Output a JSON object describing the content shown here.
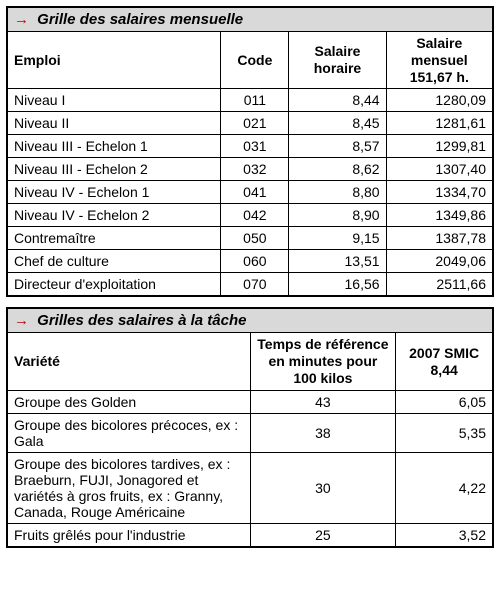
{
  "table1": {
    "title": "Grille des salaires mensuelle",
    "columns": [
      "Emploi",
      "Code",
      "Salaire horaire",
      "Salaire mensuel 151,67 h."
    ],
    "rows": [
      {
        "emploi": "Niveau I",
        "code": "011",
        "horaire": "8,44",
        "mensuel": "1280,09"
      },
      {
        "emploi": "Niveau II",
        "code": "021",
        "horaire": "8,45",
        "mensuel": "1281,61"
      },
      {
        "emploi": "Niveau III - Echelon 1",
        "code": "031",
        "horaire": "8,57",
        "mensuel": "1299,81"
      },
      {
        "emploi": "Niveau III - Echelon 2",
        "code": "032",
        "horaire": "8,62",
        "mensuel": "1307,40"
      },
      {
        "emploi": "Niveau IV - Echelon 1",
        "code": "041",
        "horaire": "8,80",
        "mensuel": "1334,70"
      },
      {
        "emploi": "Niveau IV - Echelon 2",
        "code": "042",
        "horaire": "8,90",
        "mensuel": "1349,86"
      },
      {
        "emploi": "Contremaître",
        "code": "050",
        "horaire": "9,15",
        "mensuel": "1387,78"
      },
      {
        "emploi": "Chef de culture",
        "code": "060",
        "horaire": "13,51",
        "mensuel": "2049,06"
      },
      {
        "emploi": "Directeur d'exploitation",
        "code": "070",
        "horaire": "16,56",
        "mensuel": "2511,66"
      }
    ]
  },
  "table2": {
    "title": "Grilles des salaires à la tâche",
    "columns": [
      "Variété",
      "Temps de référence en minutes pour 100 kilos",
      "2007 SMIC 8,44"
    ],
    "rows": [
      {
        "variete": "Groupe des Golden",
        "temps": "43",
        "smic": "6,05"
      },
      {
        "variete": "Groupe des bicolores précoces, ex : Gala",
        "temps": "38",
        "smic": "5,35"
      },
      {
        "variete": "Groupe des bicolores tardives, ex : Braeburn, FUJI, Jonagored et variétés à gros fruits, ex : Granny, Canada, Rouge Américaine",
        "temps": "30",
        "smic": "4,22"
      },
      {
        "variete": "Fruits grêlés pour l'industrie",
        "temps": "25",
        "smic": "3,52"
      }
    ]
  }
}
